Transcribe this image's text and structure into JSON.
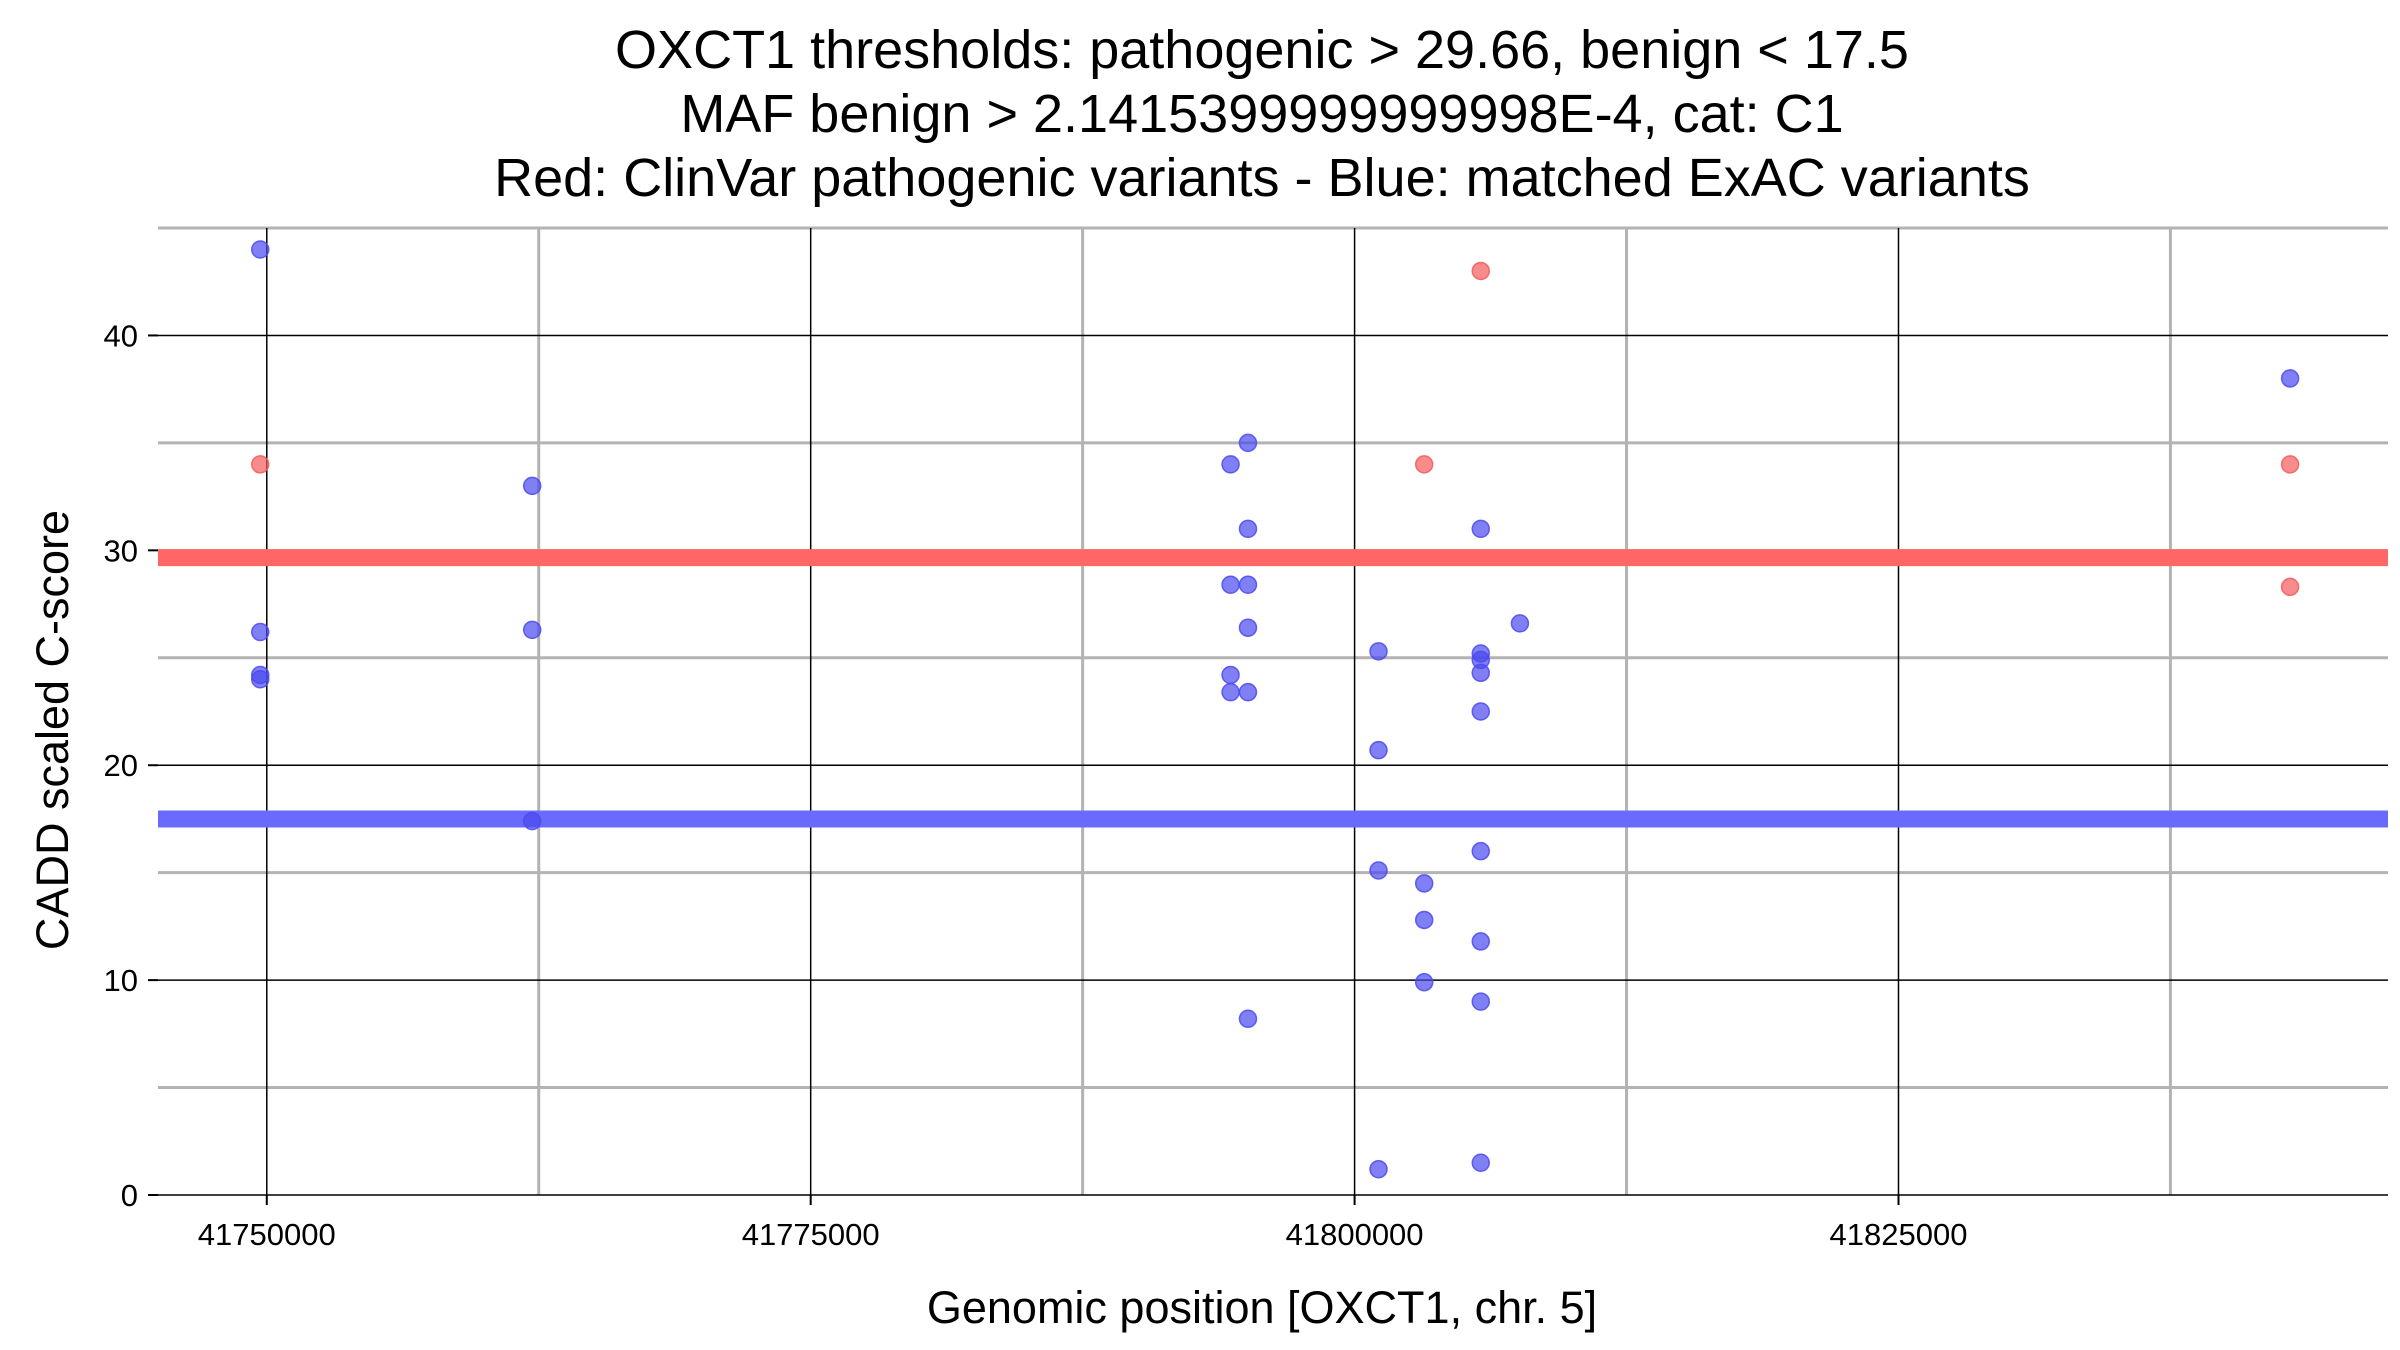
{
  "chart_data": {
    "type": "scatter",
    "title": [
      "OXCT1 thresholds: pathogenic > 29.66, benign < 17.5",
      "MAF benign > 2.1415399999999998E-4, cat: C1",
      "Red: ClinVar pathogenic variants - Blue: matched ExAC variants"
    ],
    "xlabel": "Genomic position [OXCT1, chr. 5]",
    "ylabel": "CADD scaled C-score",
    "xlim": [
      41745000,
      41847500
    ],
    "ylim": [
      0,
      45
    ],
    "x_ticks": [
      41750000,
      41775000,
      41800000,
      41825000
    ],
    "x_tick_labels": [
      "41750000",
      "41775000",
      "41800000",
      "41825000"
    ],
    "y_ticks": [
      0,
      10,
      20,
      30,
      40
    ],
    "y_tick_labels": [
      "0",
      "10",
      "20",
      "30",
      "40"
    ],
    "grid": true,
    "thresholds": [
      {
        "name": "pathogenic",
        "value": 29.66,
        "color": "#ff6666"
      },
      {
        "name": "benign",
        "value": 17.5,
        "color": "#6a6aff"
      }
    ],
    "series": [
      {
        "color": "#f55a5a",
        "points": [
          {
            "x": 41749700,
            "y": 34
          },
          {
            "x": 41805800,
            "y": 43
          },
          {
            "x": 41803200,
            "y": 34
          },
          {
            "x": 41843000,
            "y": 34
          },
          {
            "x": 41843000,
            "y": 28.3
          }
        ]
      },
      {
        "color": "#4a4af0",
        "points": [
          {
            "x": 41749700,
            "y": 44
          },
          {
            "x": 41749700,
            "y": 26.2
          },
          {
            "x": 41749700,
            "y": 24.2
          },
          {
            "x": 41749700,
            "y": 24.0
          },
          {
            "x": 41762200,
            "y": 33
          },
          {
            "x": 41762200,
            "y": 26.3
          },
          {
            "x": 41762200,
            "y": 17.4
          },
          {
            "x": 41794300,
            "y": 34
          },
          {
            "x": 41794300,
            "y": 28.4
          },
          {
            "x": 41794300,
            "y": 24.2
          },
          {
            "x": 41794300,
            "y": 23.4
          },
          {
            "x": 41795100,
            "y": 35
          },
          {
            "x": 41795100,
            "y": 31
          },
          {
            "x": 41795100,
            "y": 28.4
          },
          {
            "x": 41795100,
            "y": 26.4
          },
          {
            "x": 41795100,
            "y": 23.4
          },
          {
            "x": 41795100,
            "y": 8.2
          },
          {
            "x": 41801100,
            "y": 25.3
          },
          {
            "x": 41801100,
            "y": 20.7
          },
          {
            "x": 41801100,
            "y": 15.1
          },
          {
            "x": 41801100,
            "y": 1.2
          },
          {
            "x": 41803200,
            "y": 14.5
          },
          {
            "x": 41803200,
            "y": 12.8
          },
          {
            "x": 41803200,
            "y": 9.9
          },
          {
            "x": 41805800,
            "y": 31
          },
          {
            "x": 41805800,
            "y": 25.2
          },
          {
            "x": 41805800,
            "y": 24.9
          },
          {
            "x": 41805800,
            "y": 24.3
          },
          {
            "x": 41805800,
            "y": 22.5
          },
          {
            "x": 41805800,
            "y": 16.0
          },
          {
            "x": 41805800,
            "y": 11.8
          },
          {
            "x": 41805800,
            "y": 9.0
          },
          {
            "x": 41805800,
            "y": 1.5
          },
          {
            "x": 41807600,
            "y": 26.6
          },
          {
            "x": 41843000,
            "y": 38
          }
        ]
      }
    ]
  }
}
